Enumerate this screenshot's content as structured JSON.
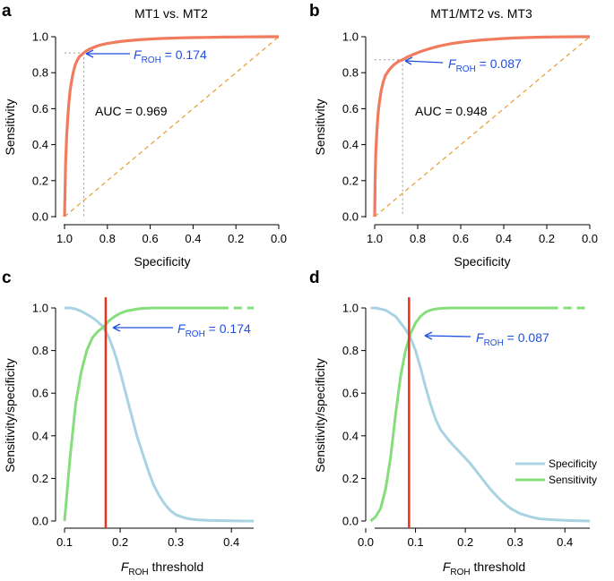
{
  "chart_data": [
    {
      "panel": "a",
      "type": "line",
      "title": "MT1 vs. MT2",
      "xlabel": "Specificity",
      "ylabel": "Sensitivity",
      "xlim": [
        1.0,
        0.0
      ],
      "ylim": [
        0.0,
        1.0
      ],
      "xticks": [
        "1.0",
        "0.8",
        "0.6",
        "0.4",
        "0.2",
        "0.0"
      ],
      "yticks": [
        "0.0",
        "0.2",
        "0.4",
        "0.6",
        "0.8",
        "1.0"
      ],
      "series": [
        {
          "name": "ROC",
          "color": "#f07b5e",
          "x": [
            1.0,
            0.995,
            0.99,
            0.985,
            0.98,
            0.975,
            0.97,
            0.96,
            0.95,
            0.94,
            0.93,
            0.92,
            0.91,
            0.9,
            0.88,
            0.86,
            0.84,
            0.82,
            0.8,
            0.77,
            0.74,
            0.7,
            0.65,
            0.6,
            0.55,
            0.5,
            0.45,
            0.4,
            0.35,
            0.3,
            0.25,
            0.2,
            0.15,
            0.1,
            0.05,
            0.0
          ],
          "y": [
            0.0,
            0.3,
            0.45,
            0.55,
            0.63,
            0.69,
            0.735,
            0.8,
            0.845,
            0.87,
            0.89,
            0.9,
            0.91,
            0.92,
            0.933,
            0.943,
            0.951,
            0.957,
            0.962,
            0.968,
            0.973,
            0.978,
            0.983,
            0.987,
            0.99,
            0.992,
            0.994,
            0.995,
            0.996,
            0.997,
            0.998,
            0.9985,
            0.999,
            0.9995,
            1.0,
            1.0
          ]
        },
        {
          "name": "Chance",
          "color": "#e8a33c",
          "x": [
            1.0,
            0.0
          ],
          "y": [
            0.0,
            1.0
          ]
        }
      ],
      "highlight": {
        "specificity": 0.91,
        "sensitivity": 0.91
      },
      "annotations": {
        "threshold_italic": "F",
        "threshold_sub": "ROH",
        "threshold_value": " = 0.174",
        "auc": "AUC = 0.969"
      }
    },
    {
      "panel": "b",
      "type": "line",
      "title": "MT1/MT2 vs. MT3",
      "xlabel": "Specificity",
      "ylabel": "Sensitivity",
      "xlim": [
        1.0,
        0.0
      ],
      "ylim": [
        0.0,
        1.0
      ],
      "xticks": [
        "1.0",
        "0.8",
        "0.6",
        "0.4",
        "0.2",
        "0.0"
      ],
      "yticks": [
        "0.0",
        "0.2",
        "0.4",
        "0.6",
        "0.8",
        "1.0"
      ],
      "series": [
        {
          "name": "ROC",
          "color": "#f07b5e",
          "x": [
            1.0,
            0.998,
            0.995,
            0.99,
            0.985,
            0.98,
            0.97,
            0.96,
            0.95,
            0.93,
            0.91,
            0.89,
            0.87,
            0.85,
            0.82,
            0.79,
            0.76,
            0.72,
            0.68,
            0.64,
            0.6,
            0.55,
            0.5,
            0.45,
            0.4,
            0.35,
            0.3,
            0.25,
            0.2,
            0.15,
            0.1,
            0.05,
            0.0
          ],
          "y": [
            0.0,
            0.2,
            0.35,
            0.47,
            0.56,
            0.62,
            0.7,
            0.75,
            0.785,
            0.82,
            0.845,
            0.862,
            0.872,
            0.886,
            0.902,
            0.916,
            0.928,
            0.942,
            0.953,
            0.962,
            0.969,
            0.976,
            0.982,
            0.986,
            0.99,
            0.993,
            0.995,
            0.997,
            0.998,
            0.999,
            0.9995,
            1.0,
            1.0
          ]
        },
        {
          "name": "Chance",
          "color": "#e8a33c",
          "x": [
            1.0,
            0.0
          ],
          "y": [
            0.0,
            1.0
          ]
        }
      ],
      "highlight": {
        "specificity": 0.87,
        "sensitivity": 0.872
      },
      "annotations": {
        "threshold_italic": "F",
        "threshold_sub": "ROH",
        "threshold_value": " = 0.087",
        "auc": "AUC = 0.948"
      }
    },
    {
      "panel": "c",
      "type": "line",
      "title": "",
      "xlabel_italic": "F",
      "xlabel_sub": "ROH",
      "xlabel_rest": " threshold",
      "ylabel": "Sensitivity/specificity",
      "xlim": [
        0.1,
        0.44
      ],
      "ylim": [
        0.0,
        1.0
      ],
      "xticks": [
        "0.1",
        "0.2",
        "0.3",
        "0.4"
      ],
      "yticks": [
        "0.0",
        "0.2",
        "0.4",
        "0.6",
        "0.8",
        "1.0"
      ],
      "series": [
        {
          "name": "Specificity",
          "color": "#a9d3e2",
          "x": [
            0.1,
            0.11,
            0.12,
            0.13,
            0.14,
            0.15,
            0.16,
            0.17,
            0.18,
            0.19,
            0.2,
            0.21,
            0.22,
            0.23,
            0.24,
            0.25,
            0.26,
            0.27,
            0.28,
            0.29,
            0.3,
            0.31,
            0.32,
            0.33,
            0.34,
            0.36,
            0.38,
            0.4,
            0.42,
            0.44
          ],
          "y": [
            1.0,
            1.0,
            0.995,
            0.985,
            0.97,
            0.955,
            0.935,
            0.91,
            0.86,
            0.79,
            0.7,
            0.6,
            0.5,
            0.4,
            0.32,
            0.24,
            0.17,
            0.12,
            0.08,
            0.05,
            0.03,
            0.02,
            0.012,
            0.008,
            0.005,
            0.003,
            0.002,
            0.001,
            0.0,
            0.0
          ]
        },
        {
          "name": "Sensitivity",
          "color": "#86dd7c",
          "x": [
            0.1,
            0.11,
            0.12,
            0.13,
            0.14,
            0.15,
            0.16,
            0.17,
            0.18,
            0.19,
            0.2,
            0.21,
            0.22,
            0.23,
            0.24,
            0.25,
            0.26,
            0.28,
            0.3,
            0.34,
            0.38
          ],
          "y": [
            0.0,
            0.3,
            0.55,
            0.7,
            0.8,
            0.86,
            0.89,
            0.91,
            0.94,
            0.96,
            0.975,
            0.985,
            0.99,
            0.995,
            0.998,
            0.999,
            1.0,
            1.0,
            1.0,
            1.0,
            1.0
          ],
          "dashed_from": 0.38
        },
        {
          "name": "Threshold",
          "color": "#e8321e",
          "x": [
            0.174,
            0.174
          ],
          "y": [
            0.0,
            1.05
          ]
        }
      ],
      "highlight": {
        "x": 0.174,
        "y": 0.91
      },
      "annotations": {
        "threshold_italic": "F",
        "threshold_sub": "ROH",
        "threshold_value": " = 0.174"
      }
    },
    {
      "panel": "d",
      "type": "line",
      "title": "",
      "xlabel_italic": "F",
      "xlabel_sub": "ROH",
      "xlabel_rest": " threshold",
      "ylabel": "Sensitivity/specificity",
      "xlim": [
        0.0,
        0.45
      ],
      "ylim": [
        0.0,
        1.0
      ],
      "xticks": [
        "0.0",
        "0.1",
        "0.2",
        "0.3",
        "0.4"
      ],
      "yticks": [
        "0.0",
        "0.2",
        "0.4",
        "0.6",
        "0.8",
        "1.0"
      ],
      "series": [
        {
          "name": "Specificity",
          "color": "#a9d3e2",
          "x": [
            0.01,
            0.02,
            0.03,
            0.04,
            0.05,
            0.06,
            0.07,
            0.08,
            0.09,
            0.1,
            0.11,
            0.12,
            0.13,
            0.14,
            0.15,
            0.17,
            0.19,
            0.21,
            0.23,
            0.25,
            0.27,
            0.29,
            0.31,
            0.33,
            0.35,
            0.38,
            0.41,
            0.45
          ],
          "y": [
            1.0,
            1.0,
            0.995,
            0.99,
            0.975,
            0.96,
            0.93,
            0.9,
            0.86,
            0.8,
            0.72,
            0.63,
            0.55,
            0.48,
            0.43,
            0.37,
            0.32,
            0.27,
            0.21,
            0.15,
            0.1,
            0.06,
            0.035,
            0.02,
            0.01,
            0.005,
            0.002,
            0.0
          ]
        },
        {
          "name": "Sensitivity",
          "color": "#86dd7c",
          "x": [
            0.01,
            0.02,
            0.03,
            0.04,
            0.05,
            0.06,
            0.07,
            0.08,
            0.09,
            0.1,
            0.11,
            0.12,
            0.13,
            0.14,
            0.15,
            0.17,
            0.2,
            0.25,
            0.3,
            0.37
          ],
          "y": [
            0.0,
            0.02,
            0.06,
            0.15,
            0.3,
            0.5,
            0.68,
            0.8,
            0.88,
            0.93,
            0.96,
            0.98,
            0.99,
            0.995,
            0.998,
            1.0,
            1.0,
            1.0,
            1.0,
            1.0
          ],
          "dashed_from": 0.37
        },
        {
          "name": "Threshold",
          "color": "#e8321e",
          "x": [
            0.087,
            0.087
          ],
          "y": [
            0.0,
            1.05
          ]
        }
      ],
      "highlight": {
        "x": 0.087,
        "y": 0.875
      },
      "annotations": {
        "threshold_italic": "F",
        "threshold_sub": "ROH",
        "threshold_value": " = 0.087"
      },
      "legend": {
        "placement": "bottom-right",
        "entries": [
          "Specificity",
          "Sensitivity"
        ]
      }
    }
  ],
  "panel_labels": [
    "a",
    "b",
    "c",
    "d"
  ]
}
